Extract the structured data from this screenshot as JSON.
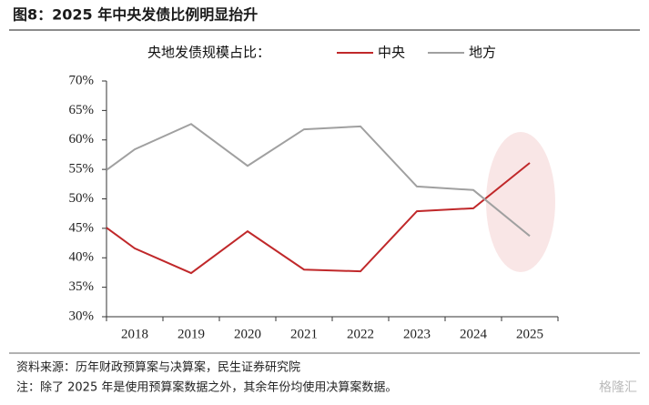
{
  "chart_data": {
    "type": "line",
    "title": "图8：2025 年中央发债比例明显抬升",
    "legend_title": "央地发债规模占比：",
    "categories": [
      null,
      "2018",
      "2019",
      "2020",
      "2021",
      "2022",
      "2023",
      "2024",
      "2025"
    ],
    "series": [
      {
        "name": "中央",
        "color": "#c0282a",
        "values": [
          45.1,
          41.6,
          37.4,
          44.5,
          38.0,
          37.7,
          47.9,
          48.4,
          56.1
        ]
      },
      {
        "name": "地方",
        "color": "#a0a0a0",
        "values": [
          54.9,
          58.4,
          62.7,
          55.6,
          61.8,
          62.3,
          52.1,
          51.5,
          43.7
        ]
      }
    ],
    "ylim": [
      30,
      70
    ],
    "yticks": [
      {
        "value": 30,
        "label": "30%"
      },
      {
        "value": 35,
        "label": "35%"
      },
      {
        "value": 40,
        "label": "40%"
      },
      {
        "value": 45,
        "label": "45%"
      },
      {
        "value": 50,
        "label": "50%"
      },
      {
        "value": 55,
        "label": "55%"
      },
      {
        "value": 60,
        "label": "60%"
      },
      {
        "value": 65,
        "label": "65%"
      },
      {
        "value": 70,
        "label": "70%"
      }
    ],
    "source": "资料来源：历年财政预算案与决算案，民生证券研究院",
    "note": "注：除了 2025 年是使用预算案数据之外，其余年份均使用决算案数据。",
    "watermark": "格隆汇"
  }
}
